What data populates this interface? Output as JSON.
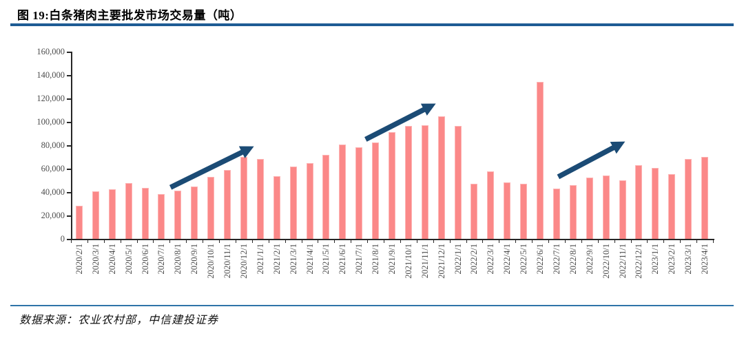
{
  "header": {
    "title": "图 19:白条猪肉主要批发市场交易量（吨）"
  },
  "footer": {
    "source_label": "数据来源：农业农村部，中信建投证券"
  },
  "colors": {
    "bar_fill": "#FB8888",
    "bar_edge": "#FDB4B4",
    "arrow": "#1B4B75",
    "title_rule": "#1E5C94",
    "footer_rule": "#2E74A8",
    "axis": "#262626",
    "tick_label": "#4d4d4d"
  },
  "chart_data": {
    "type": "bar",
    "title": "图 19:白条猪肉主要批发市场交易量（吨）",
    "unit": "吨",
    "categories": [
      "2020/2/1",
      "2020/3/1",
      "2020/4/1",
      "2020/5/1",
      "2020/6/1",
      "2020/7/1",
      "2020/8/1",
      "2020/9/1",
      "2020/10/1",
      "2020/11/1",
      "2020/12/1",
      "2021/1/1",
      "2021/2/1",
      "2021/3/1",
      "2021/4/1",
      "2021/5/1",
      "2021/6/1",
      "2021/7/1",
      "2021/8/1",
      "2021/9/1",
      "2021/10/1",
      "2021/11/1",
      "2021/12/1",
      "2022/1/1",
      "2022/2/1",
      "2022/3/1",
      "2022/4/1",
      "2022/5/1",
      "2022/6/1",
      "2022/7/1",
      "2022/8/1",
      "2022/9/1",
      "2022/10/1",
      "2022/11/1",
      "2022/12/1",
      "2023/1/1",
      "2023/2/1",
      "2023/3/1",
      "2023/4/1"
    ],
    "values": [
      28000,
      40500,
      42500,
      47500,
      43500,
      38500,
      41000,
      45000,
      53000,
      59000,
      70000,
      68500,
      53500,
      62000,
      65000,
      72000,
      80500,
      78000,
      82500,
      91000,
      96500,
      97000,
      105000,
      96500,
      47000,
      57500,
      48500,
      47000,
      134000,
      43000,
      46000,
      52500,
      54000,
      50000,
      63000,
      60500,
      55500,
      68000,
      70000
    ],
    "xlabel": "",
    "ylabel": "",
    "ylim": [
      0,
      160000
    ],
    "ytick_step": 20000,
    "ytick_labels": [
      "0",
      "20,000",
      "40,000",
      "60,000",
      "80,000",
      "100,000",
      "120,000",
      "140,000",
      "160,000"
    ],
    "xtick_rotation": -90,
    "grid": false,
    "legend": "none",
    "annotations": [
      {
        "type": "arrow",
        "from": {
          "index": 6.05,
          "value": 44000
        },
        "to": {
          "index": 10.75,
          "value": 76500
        }
      },
      {
        "type": "arrow",
        "from": {
          "index": 17.9,
          "value": 85000
        },
        "to": {
          "index": 21.8,
          "value": 113000
        }
      },
      {
        "type": "arrow",
        "from": {
          "index": 29.6,
          "value": 53000
        },
        "to": {
          "index": 33.3,
          "value": 80500
        }
      }
    ]
  }
}
